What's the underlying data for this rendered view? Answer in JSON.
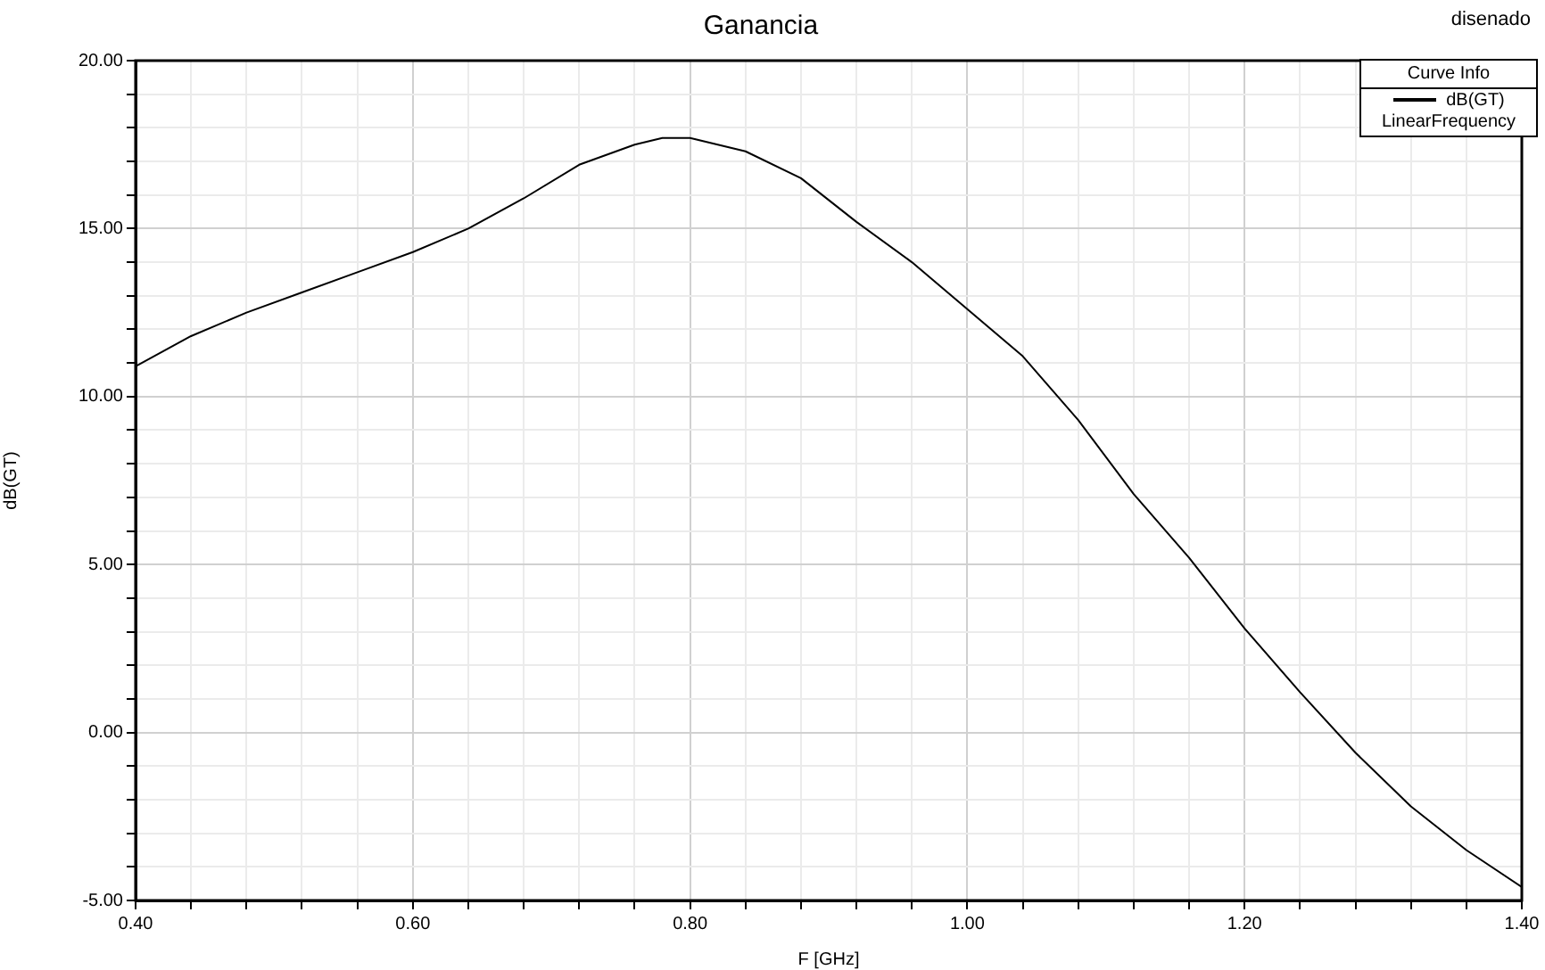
{
  "chart_data": {
    "type": "line",
    "title": "Ganancia",
    "xlabel": "F [GHz]",
    "ylabel": "dB(GT)",
    "legend_title": "Curve Info",
    "annotations": [
      "disenado"
    ],
    "x": [
      0.4,
      0.44,
      0.48,
      0.52,
      0.56,
      0.6,
      0.64,
      0.68,
      0.72,
      0.76,
      0.78,
      0.8,
      0.84,
      0.88,
      0.92,
      0.96,
      1.0,
      1.04,
      1.08,
      1.12,
      1.16,
      1.2,
      1.24,
      1.28,
      1.32,
      1.36,
      1.4
    ],
    "series": [
      {
        "name": "dB(GT) LinearFrequency",
        "color": "#000000",
        "values": [
          10.9,
          11.8,
          12.5,
          13.1,
          13.7,
          14.3,
          15.0,
          15.9,
          16.9,
          17.5,
          17.7,
          17.7,
          17.3,
          16.5,
          15.2,
          14.0,
          12.6,
          11.2,
          9.3,
          7.1,
          5.2,
          3.1,
          1.2,
          -0.6,
          -2.2,
          -3.5,
          -4.6
        ]
      }
    ],
    "xlim": [
      0.4,
      1.4
    ],
    "ylim": [
      -5,
      20
    ],
    "xticks": [
      {
        "value": 0.4,
        "label": "0.40"
      },
      {
        "value": 0.44,
        "label": null
      },
      {
        "value": 0.48,
        "label": null
      },
      {
        "value": 0.52,
        "label": null
      },
      {
        "value": 0.56,
        "label": null
      },
      {
        "value": 0.6,
        "label": "0.60"
      },
      {
        "value": 0.64,
        "label": null
      },
      {
        "value": 0.68,
        "label": null
      },
      {
        "value": 0.72,
        "label": null
      },
      {
        "value": 0.76,
        "label": null
      },
      {
        "value": 0.8,
        "label": "0.80"
      },
      {
        "value": 0.84,
        "label": null
      },
      {
        "value": 0.88,
        "label": null
      },
      {
        "value": 0.92,
        "label": null
      },
      {
        "value": 0.96,
        "label": null
      },
      {
        "value": 1.0,
        "label": "1.00"
      },
      {
        "value": 1.04,
        "label": null
      },
      {
        "value": 1.08,
        "label": null
      },
      {
        "value": 1.12,
        "label": null
      },
      {
        "value": 1.16,
        "label": null
      },
      {
        "value": 1.2,
        "label": "1.20"
      },
      {
        "value": 1.24,
        "label": null
      },
      {
        "value": 1.28,
        "label": null
      },
      {
        "value": 1.32,
        "label": null
      },
      {
        "value": 1.36,
        "label": null
      },
      {
        "value": 1.4,
        "label": "1.40"
      }
    ],
    "yticks": [
      {
        "value": -5,
        "label": "-5.00"
      },
      {
        "value": -4,
        "label": null
      },
      {
        "value": -3,
        "label": null
      },
      {
        "value": -2,
        "label": null
      },
      {
        "value": -1,
        "label": null
      },
      {
        "value": 0,
        "label": "0.00"
      },
      {
        "value": 1,
        "label": null
      },
      {
        "value": 2,
        "label": null
      },
      {
        "value": 3,
        "label": null
      },
      {
        "value": 4,
        "label": null
      },
      {
        "value": 5,
        "label": "5.00"
      },
      {
        "value": 6,
        "label": null
      },
      {
        "value": 7,
        "label": null
      },
      {
        "value": 8,
        "label": null
      },
      {
        "value": 9,
        "label": null
      },
      {
        "value": 10,
        "label": "10.00"
      },
      {
        "value": 11,
        "label": null
      },
      {
        "value": 12,
        "label": null
      },
      {
        "value": 13,
        "label": null
      },
      {
        "value": 14,
        "label": null
      },
      {
        "value": 15,
        "label": "15.00"
      },
      {
        "value": 16,
        "label": null
      },
      {
        "value": 17,
        "label": null
      },
      {
        "value": 18,
        "label": null
      },
      {
        "value": 19,
        "label": null
      },
      {
        "value": 20,
        "label": "20.00"
      }
    ],
    "grid": true,
    "legend": "top right",
    "marker": "none",
    "line_style": "solid"
  }
}
